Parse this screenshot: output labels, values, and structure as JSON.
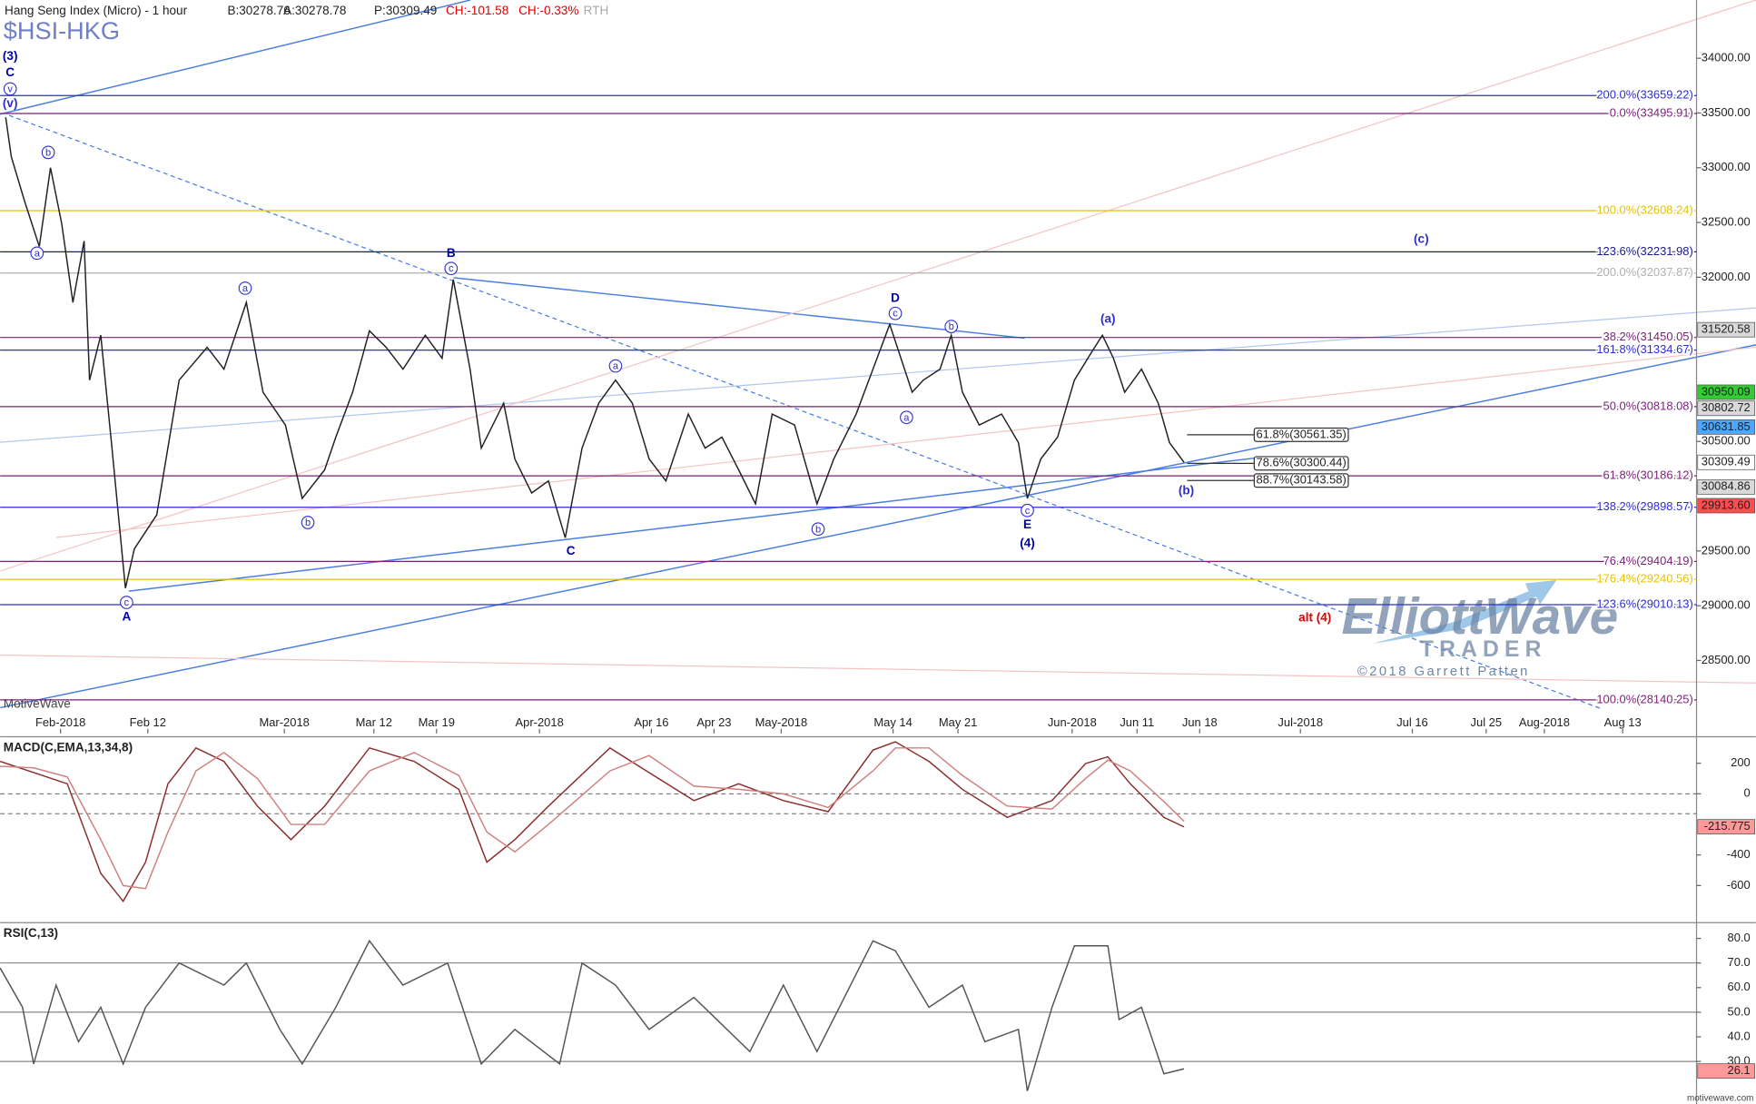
{
  "chart_data": [
    {
      "type": "line",
      "title": "Hang Seng Index (Micro) - 1 hour",
      "symbol": "$HSI-HKG",
      "quote": [
        "B:30278.76",
        "A:30278.78",
        "P:30309.49",
        "CH:-101.58",
        "CH:-0.33%",
        "RTH"
      ],
      "watermark": "MotiveWave",
      "logo": [
        "ElliottWave",
        "TRADER",
        "©2018 Garrett Patten"
      ],
      "x": [
        2.5,
        5,
        11,
        17.5,
        22.5,
        27.5,
        32.5,
        37.5,
        40,
        45,
        50,
        56,
        60,
        70,
        80,
        92.5,
        100,
        110,
        117.5,
        127.5,
        135,
        145,
        150,
        157.5,
        165,
        172.5,
        180,
        190,
        197.5,
        202.5,
        210,
        215,
        225,
        230,
        237.5,
        245,
        252.5,
        260,
        267.5,
        275,
        282.5,
        290,
        297.5,
        307.5,
        315,
        322.5,
        330,
        337.5,
        345,
        355,
        365,
        372.5,
        382.5,
        390,
        397.5,
        402.5,
        407.5,
        412.5,
        420,
        425,
        430,
        437.5,
        447.5,
        455,
        459,
        465,
        472.5,
        480,
        487.5,
        492.5,
        497.5,
        502.5,
        510,
        517.5,
        522.5,
        529
      ],
      "series": [
        {
          "color": "#222222",
          "values": [
            33460,
            33100,
            32690,
            32280,
            33000,
            32490,
            31770,
            32330,
            31060,
            31470,
            30440,
            29160,
            29520,
            29830,
            31060,
            31360,
            31160,
            31770,
            30950,
            30650,
            29980,
            30240,
            30540,
            30950,
            31510,
            31360,
            31160,
            31470,
            31260,
            31980,
            31160,
            30440,
            30850,
            30340,
            30030,
            30140,
            29620,
            30440,
            30850,
            31060,
            30850,
            30340,
            30140,
            30750,
            30440,
            30540,
            30240,
            29930,
            30750,
            30650,
            29930,
            30340,
            30750,
            31160,
            31570,
            31260,
            30950,
            31060,
            31160,
            31470,
            30950,
            30650,
            30750,
            30490,
            29980,
            30340,
            30540,
            31060,
            31310,
            31470,
            31260,
            30950,
            31160,
            30850,
            30490,
            30310
          ]
        }
      ],
      "xlim": [
        0,
        758
      ],
      "xticks": [
        {
          "value": 27,
          "label": "Feb-2018"
        },
        {
          "value": 66,
          "label": "Feb 12"
        },
        {
          "value": 127,
          "label": "Mar-2018"
        },
        {
          "value": 167,
          "label": "Mar 12"
        },
        {
          "value": 195,
          "label": "Mar 19"
        },
        {
          "value": 241,
          "label": "Apr-2018"
        },
        {
          "value": 291,
          "label": "Apr 16"
        },
        {
          "value": 319,
          "label": "Apr 23"
        },
        {
          "value": 349,
          "label": "May-2018"
        },
        {
          "value": 399,
          "label": "May 14"
        },
        {
          "value": 428,
          "label": "May 21"
        },
        {
          "value": 479,
          "label": "Jun-2018"
        },
        {
          "value": 508,
          "label": "Jun 11"
        },
        {
          "value": 536,
          "label": "Jun 18"
        },
        {
          "value": 581,
          "label": "Jul-2018"
        },
        {
          "value": 631,
          "label": "Jul 16"
        },
        {
          "value": 664,
          "label": "Jul 25"
        },
        {
          "value": 690,
          "label": "Aug-2018"
        },
        {
          "value": 725,
          "label": "Aug 13"
        }
      ],
      "ylim": [
        27834,
        34532
      ],
      "yticks": [
        {
          "value": 34000,
          "label": "34000.00"
        },
        {
          "value": 33500,
          "label": "33500.00"
        },
        {
          "value": 33000,
          "label": "33000.00"
        },
        {
          "value": 32500,
          "label": "32500.00"
        },
        {
          "value": 32000,
          "label": "32000.00"
        },
        {
          "value": 30500,
          "label": "30500.00"
        },
        {
          "value": 29500,
          "label": "29500.00"
        },
        {
          "value": 29000,
          "label": "29000.00"
        },
        {
          "value": 28500,
          "label": "28500.00"
        }
      ],
      "levels": [
        {
          "price": 33659.22,
          "label": "200.0%(33659.22)",
          "color": "#2e2ecf"
        },
        {
          "price": 33495.91,
          "label": "0.0%(33495.91)",
          "color": "#7a1f7a"
        },
        {
          "price": 32608.24,
          "label": "100.0%(32608.24)",
          "color": "#e6c200"
        },
        {
          "price": 32231.98,
          "label": "123.6%(32231.98)",
          "color": "#1a1a8c"
        },
        {
          "price": 32037.87,
          "label": "200.0%(32037.87)",
          "color": "#b0b0b0"
        },
        {
          "price": 31450.05,
          "label": "38.2%(31450.05)",
          "color": "#7a1f7a"
        },
        {
          "price": 31334.67,
          "label": "161.8%(31334.67)",
          "color": "#2e2ecf"
        },
        {
          "price": 30818.08,
          "label": "50.0%(30818.08)",
          "color": "#7a1f7a"
        },
        {
          "price": 30186.12,
          "label": "61.8%(30186.12)",
          "color": "#7a1f7a"
        },
        {
          "price": 29898.57,
          "label": "138.2%(29898.57)",
          "color": "#2e2ecf"
        },
        {
          "price": 29404.19,
          "label": "76.4%(29404.19)",
          "color": "#7a1f7a"
        },
        {
          "price": 29240.56,
          "label": "176.4%(29240.56)",
          "color": "#e6c200"
        },
        {
          "price": 29010.13,
          "label": "123.6%(29010.13)",
          "color": "#2e2ecf"
        },
        {
          "price": 28140.25,
          "label": "100.0%(28140.25)",
          "color": "#7a1f7a"
        }
      ],
      "retracements": [
        {
          "price": 30561.35,
          "label": "61.8%(30561.35)"
        },
        {
          "price": 30300.44,
          "label": "78.6%(30300.44)"
        },
        {
          "price": 30143.58,
          "label": "88.7%(30143.58)"
        }
      ],
      "price_tags": [
        {
          "value": 31520.58,
          "label": "31520.58",
          "color": "#d9d9d9"
        },
        {
          "value": 30950.09,
          "label": "30950.09",
          "color": "#33cc33"
        },
        {
          "value": 30802.72,
          "label": "30802.72",
          "color": "#d9d9d9"
        },
        {
          "value": 30631.85,
          "label": "30631.85",
          "color": "#4da6ff"
        },
        {
          "value": 30309.49,
          "label": "30309.49",
          "color": "#ffffff"
        },
        {
          "value": 30084.86,
          "label": "30084.86",
          "color": "#d9d9d9"
        },
        {
          "value": 29913.6,
          "label": "29913.60",
          "color": "#ff4d4d"
        }
      ],
      "wave_labels": [
        {
          "text": "(3)",
          "x": 4.5,
          "price": 34020,
          "circled": false,
          "color": "#0000aa"
        },
        {
          "text": "C",
          "x": 4.5,
          "price": 33870,
          "circled": false,
          "color": "#0000aa"
        },
        {
          "text": "v",
          "x": 4.5,
          "price": 33720,
          "circled": true,
          "color": "#2e2ecf"
        },
        {
          "text": "(v)",
          "x": 4.5,
          "price": 33590,
          "circled": false,
          "color": "#2e2ecf"
        },
        {
          "text": "b",
          "x": 21.5,
          "price": 33140,
          "circled": true,
          "color": "#2e2ecf"
        },
        {
          "text": "a",
          "x": 16.5,
          "price": 32220,
          "circled": true,
          "color": "#2e2ecf"
        },
        {
          "text": "c",
          "x": 56.5,
          "price": 29030,
          "circled": true,
          "color": "#2e2ecf"
        },
        {
          "text": "A",
          "x": 56.5,
          "price": 28900,
          "circled": false,
          "color": "#0000aa"
        },
        {
          "text": "a",
          "x": 109.5,
          "price": 31900,
          "circled": true,
          "color": "#2e2ecf"
        },
        {
          "text": "b",
          "x": 137.5,
          "price": 29760,
          "circled": true,
          "color": "#2e2ecf"
        },
        {
          "text": "B",
          "x": 201.5,
          "price": 32220,
          "circled": false,
          "color": "#0000aa"
        },
        {
          "text": "c",
          "x": 201.5,
          "price": 32080,
          "circled": true,
          "color": "#2e2ecf"
        },
        {
          "text": "a",
          "x": 275,
          "price": 31190,
          "circled": true,
          "color": "#2e2ecf"
        },
        {
          "text": "C",
          "x": 255,
          "price": 29500,
          "circled": false,
          "color": "#0000aa"
        },
        {
          "text": "b",
          "x": 365.5,
          "price": 29700,
          "circled": true,
          "color": "#2e2ecf"
        },
        {
          "text": "D",
          "x": 400,
          "price": 31810,
          "circled": false,
          "color": "#0000aa"
        },
        {
          "text": "c",
          "x": 400,
          "price": 31670,
          "circled": true,
          "color": "#2e2ecf"
        },
        {
          "text": "b",
          "x": 425,
          "price": 31550,
          "circled": true,
          "color": "#2e2ecf"
        },
        {
          "text": "a",
          "x": 405,
          "price": 30720,
          "circled": true,
          "color": "#2e2ecf"
        },
        {
          "text": "c",
          "x": 459,
          "price": 29870,
          "circled": true,
          "color": "#2e2ecf"
        },
        {
          "text": "E",
          "x": 459,
          "price": 29740,
          "circled": false,
          "color": "#0000aa"
        },
        {
          "text": "(4)",
          "x": 459,
          "price": 29570,
          "circled": false,
          "color": "#0000aa"
        },
        {
          "text": "(a)",
          "x": 495,
          "price": 31620,
          "circled": false,
          "color": "#2e2ecf"
        },
        {
          "text": "(b)",
          "x": 530,
          "price": 30050,
          "circled": false,
          "color": "#2e2ecf"
        },
        {
          "text": "(c)",
          "x": 635,
          "price": 32350,
          "circled": false,
          "color": "#2e2ecf"
        },
        {
          "text": "alt (4)",
          "x": 587.5,
          "price": 28890,
          "circled": false,
          "color": "#e00000"
        }
      ]
    },
    {
      "type": "line",
      "title": "MACD(C,EMA,13,34,8)",
      "x": [
        0,
        15,
        30,
        45,
        55,
        65,
        75,
        87.5,
        100,
        115,
        130,
        145,
        165,
        185,
        205,
        217.5,
        230,
        245,
        272.5,
        290,
        310,
        330,
        350,
        370,
        390,
        400,
        415,
        430,
        450,
        470,
        485,
        495,
        505,
        520,
        529
      ],
      "series": [
        {
          "color": "#8b2e2e",
          "values": [
            212,
            139,
            66,
            -520,
            -703,
            -447,
            66,
            300,
            212,
            -81,
            -300,
            -81,
            300,
            212,
            29,
            -447,
            -300,
            -81,
            300,
            139,
            -44,
            66,
            -44,
            -117,
            286,
            340,
            212,
            29,
            -154,
            -44,
            198,
            242,
            66,
            -154,
            -216
          ]
        },
        {
          "color": "#d08080",
          "values": [
            180,
            170,
            110,
            -300,
            -600,
            -620,
            -250,
            150,
            270,
            100,
            -200,
            -200,
            150,
            270,
            120,
            -250,
            -380,
            -200,
            150,
            250,
            50,
            30,
            0,
            -90,
            150,
            300,
            300,
            120,
            -80,
            -100,
            100,
            220,
            150,
            -50,
            -180
          ]
        }
      ],
      "xlim": [
        0,
        758
      ],
      "ylim": [
        -828,
        344
      ],
      "yticks": [
        200,
        0,
        -400,
        -600
      ],
      "hlines": [
        0,
        -130
      ],
      "price_tag": {
        "value": -215.775,
        "color": "#ff9999"
      }
    },
    {
      "type": "line",
      "title": "RSI(C,13)",
      "footer": "motivewave.com",
      "x": [
        0,
        10,
        15,
        25,
        35,
        45,
        55,
        65,
        80,
        100,
        110,
        125,
        135,
        150,
        165,
        180,
        200,
        215,
        230,
        250,
        260,
        275,
        290,
        310,
        335,
        350,
        365,
        390,
        400,
        415,
        430,
        440,
        455,
        459,
        470,
        480,
        495,
        500,
        510,
        520,
        529
      ],
      "series": [
        {
          "color": "#555555",
          "values": [
            68,
            52,
            29,
            61,
            38,
            52,
            29,
            52,
            70,
            61,
            70,
            43,
            29,
            52,
            79,
            61,
            70,
            29,
            43,
            29,
            70,
            61,
            43,
            56,
            34,
            61,
            34,
            79,
            75,
            52,
            61,
            38,
            43,
            18,
            52,
            77,
            77,
            47,
            52,
            25,
            27
          ]
        }
      ],
      "xlim": [
        0,
        758
      ],
      "ylim": [
        12.7,
        85.5
      ],
      "yticks": [
        {
          "value": 80,
          "label": "80.0"
        },
        {
          "value": 70,
          "label": "70.0"
        },
        {
          "value": 60,
          "label": "60.0"
        },
        {
          "value": 50,
          "label": "50.0"
        },
        {
          "value": 40,
          "label": "40.0"
        },
        {
          "value": 30,
          "label": "30.0"
        }
      ],
      "hlines": [
        70,
        50,
        30
      ],
      "price_tag": {
        "value": 26.1,
        "color": "#ff9999"
      }
    }
  ]
}
